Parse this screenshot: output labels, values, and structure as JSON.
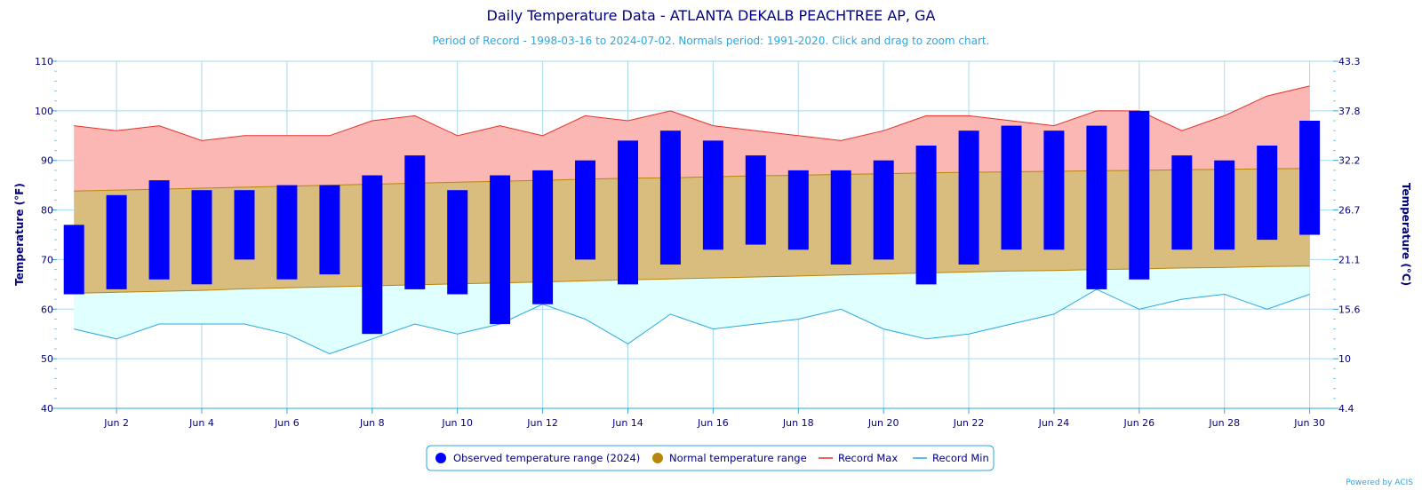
{
  "chart_data": {
    "type": "bar",
    "title": "Daily Temperature Data - ATLANTA DEKALB PEACHTREE AP, GA",
    "subtitle": "Period of Record - 1998-03-16 to 2024-07-02. Normals period: 1991-2020. Click and drag to zoom chart.",
    "ylabel": "Temperature (°F)",
    "ylabel_right": "Temperature (°C)",
    "ylim": [
      40,
      110
    ],
    "y_ticks": [
      40,
      50,
      60,
      70,
      80,
      90,
      100,
      110
    ],
    "y_ticks_right": [
      "4.4",
      "10",
      "15.6",
      "21.1",
      "26.7",
      "32.2",
      "37.8",
      "43.3"
    ],
    "x_days": [
      1,
      2,
      3,
      4,
      5,
      6,
      7,
      8,
      9,
      10,
      11,
      12,
      13,
      14,
      15,
      16,
      17,
      18,
      19,
      20,
      21,
      22,
      23,
      24,
      25,
      26,
      27,
      28,
      29,
      30
    ],
    "x_tick_days": [
      2,
      4,
      6,
      8,
      10,
      12,
      14,
      16,
      18,
      20,
      22,
      24,
      26,
      28,
      30
    ],
    "x_tick_labels": [
      "Jun 2",
      "Jun 4",
      "Jun 6",
      "Jun 8",
      "Jun 10",
      "Jun 12",
      "Jun 14",
      "Jun 16",
      "Jun 18",
      "Jun 20",
      "Jun 22",
      "Jun 24",
      "Jun 26",
      "Jun 28",
      "Jun 30"
    ],
    "grid": true,
    "legend_position": "bottom-center",
    "series": [
      {
        "name": "Observed temperature range (2024)",
        "color": "#0000ff",
        "low": [
          63,
          64,
          66,
          65,
          70,
          66,
          67,
          55,
          64,
          63,
          57,
          61,
          70,
          65,
          69,
          72,
          73,
          72,
          69,
          70,
          65,
          69,
          72,
          72,
          64,
          66,
          72,
          72,
          74,
          75
        ],
        "high": [
          77,
          83,
          86,
          84,
          84,
          85,
          85,
          87,
          91,
          84,
          87,
          88,
          90,
          94,
          96,
          94,
          91,
          88,
          88,
          90,
          93,
          96,
          97,
          96,
          97,
          100,
          91,
          90,
          93,
          98
        ]
      },
      {
        "name": "Normal temperature range",
        "color": "#b8860b",
        "low": [
          63.2,
          63.4,
          63.6,
          63.8,
          64.1,
          64.3,
          64.5,
          64.7,
          64.9,
          65.1,
          65.3,
          65.5,
          65.7,
          65.9,
          66.1,
          66.3,
          66.5,
          66.7,
          66.9,
          67.1,
          67.3,
          67.5,
          67.7,
          67.8,
          68.0,
          68.1,
          68.3,
          68.4,
          68.6,
          68.7
        ],
        "high": [
          83.8,
          84.0,
          84.2,
          84.4,
          84.6,
          84.8,
          85.0,
          85.2,
          85.4,
          85.6,
          85.8,
          86.0,
          86.2,
          86.4,
          86.5,
          86.7,
          86.9,
          87.0,
          87.2,
          87.3,
          87.5,
          87.6,
          87.7,
          87.8,
          87.9,
          88.0,
          88.1,
          88.2,
          88.3,
          88.4
        ]
      },
      {
        "name": "Record Max",
        "color": "#e8302a",
        "fill": "#fbb7b3",
        "values": [
          97,
          96,
          97,
          94,
          95,
          95,
          95,
          98,
          99,
          95,
          97,
          95,
          99,
          98,
          100,
          97,
          96,
          95,
          94,
          96,
          99,
          99,
          98,
          97,
          100,
          100,
          96,
          99,
          103,
          105
        ]
      },
      {
        "name": "Record Min",
        "color": "#29a8e0",
        "fill": "#e0ffff",
        "values": [
          56,
          54,
          57,
          57,
          57,
          55,
          51,
          54,
          57,
          55,
          57,
          61,
          58,
          53,
          59,
          56,
          57,
          58,
          60,
          56,
          54,
          55,
          57,
          59,
          64,
          60,
          62,
          63,
          60,
          63
        ]
      }
    ],
    "normal_fill": "#d8bd7f",
    "normal_line": "#b8860b",
    "credit": "Powered by ACIS"
  }
}
